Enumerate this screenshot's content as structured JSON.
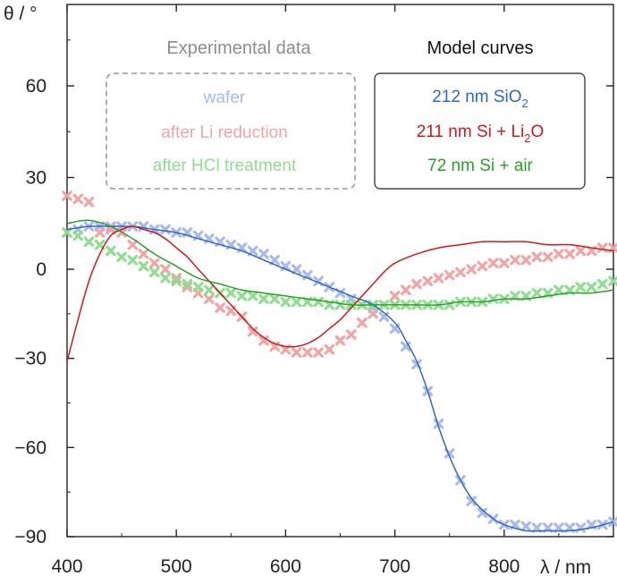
{
  "chart_data": {
    "type": "line",
    "title": "",
    "xlabel": "λ / nm",
    "ylabel": "θ / °",
    "xlim": [
      400,
      900
    ],
    "ylim": [
      -90,
      80
    ],
    "xticks": [
      400,
      500,
      600,
      700,
      800
    ],
    "yticks": [
      -90,
      -60,
      -30,
      0,
      30,
      60
    ],
    "grid": false,
    "legend_experimental": {
      "title": "Experimental data",
      "entries": [
        "wafer",
        "after Li reduction",
        "after HCl treatment"
      ]
    },
    "legend_model": {
      "title": "Model curves",
      "entries": [
        {
          "text": "212 nm SiO",
          "sub": "2",
          "tail": ""
        },
        {
          "text": "211 nm Si + Li",
          "sub": "2",
          "tail": "O"
        },
        {
          "text": "72 nm Si + air",
          "sub": "",
          "tail": ""
        }
      ]
    },
    "colors": {
      "wafer_data": "#a9b9ee",
      "li_data": "#f2a3a3",
      "hcl_data": "#8fdd8f",
      "wafer_model": "#2c6bbd",
      "li_model": "#cc1a1a",
      "hcl_model": "#2aa02a",
      "legend_exp_title": "#8c8c8c",
      "legend_model_title": "#111111"
    },
    "series": [
      {
        "name": "wafer",
        "kind": "data",
        "x": [
          400,
          410,
          420,
          430,
          440,
          450,
          460,
          470,
          480,
          490,
          500,
          510,
          520,
          530,
          540,
          550,
          560,
          570,
          580,
          590,
          600,
          610,
          620,
          630,
          640,
          650,
          660,
          670,
          680,
          690,
          700,
          710,
          720,
          730,
          740,
          750,
          760,
          770,
          780,
          790,
          800,
          810,
          820,
          830,
          840,
          850,
          860,
          870,
          880,
          890,
          900
        ],
        "y": [
          12,
          13,
          14,
          14,
          14,
          14,
          14,
          14,
          13,
          13,
          12,
          12,
          11,
          10,
          9,
          8,
          7,
          6,
          5,
          3,
          1,
          0,
          -2,
          -4,
          -6,
          -8,
          -10,
          -12,
          -13,
          -16,
          -20,
          -26,
          -32,
          -41,
          -52,
          -62,
          -71,
          -78,
          -82,
          -84,
          -86,
          -86,
          -86.5,
          -87,
          -87,
          -87,
          -87,
          -87,
          -86,
          -86,
          -85
        ]
      },
      {
        "name": "after Li reduction",
        "kind": "data",
        "x": [
          400,
          410,
          420,
          430,
          440,
          450,
          460,
          470,
          480,
          490,
          500,
          510,
          520,
          530,
          540,
          550,
          560,
          570,
          580,
          590,
          600,
          610,
          620,
          630,
          640,
          650,
          660,
          670,
          680,
          690,
          700,
          710,
          720,
          730,
          740,
          750,
          760,
          770,
          780,
          790,
          800,
          810,
          820,
          830,
          840,
          850,
          860,
          870,
          880,
          890,
          900
        ],
        "y": [
          24,
          23,
          22,
          12,
          13,
          12,
          8,
          5,
          2,
          0,
          -3,
          -6,
          -8,
          -10,
          -13,
          -14,
          -16,
          -21,
          -24,
          -26,
          -27,
          -28,
          -28,
          -28,
          -27,
          -24,
          -22,
          -18,
          -15,
          -12,
          -9,
          -7,
          -5,
          -4,
          -3,
          -2,
          -1,
          0,
          1,
          2,
          2,
          3,
          3,
          4,
          4,
          5,
          5,
          6,
          6,
          7,
          7
        ]
      },
      {
        "name": "after HCl treatment",
        "kind": "data",
        "x": [
          400,
          410,
          420,
          430,
          440,
          450,
          460,
          470,
          480,
          490,
          500,
          510,
          520,
          530,
          540,
          550,
          560,
          570,
          580,
          590,
          600,
          610,
          620,
          630,
          640,
          650,
          660,
          670,
          680,
          690,
          700,
          710,
          720,
          730,
          740,
          750,
          760,
          770,
          780,
          790,
          800,
          810,
          820,
          830,
          840,
          850,
          860,
          870,
          880,
          890,
          900
        ],
        "y": [
          12,
          11,
          9,
          8,
          6,
          4,
          3,
          1,
          -1,
          -3,
          -4,
          -5,
          -6,
          -7,
          -8,
          -8,
          -9,
          -9,
          -10,
          -10,
          -11,
          -11,
          -11,
          -11,
          -12,
          -12,
          -12,
          -12,
          -12,
          -12,
          -12,
          -12,
          -12,
          -12,
          -12,
          -12,
          -11,
          -11,
          -11,
          -10,
          -10,
          -9,
          -9,
          -8,
          -8,
          -7,
          -7,
          -6,
          -6,
          -5,
          -4
        ]
      },
      {
        "name": "212 nm SiO2",
        "kind": "model",
        "x": [
          400,
          420,
          440,
          460,
          480,
          500,
          520,
          540,
          560,
          580,
          600,
          620,
          640,
          660,
          680,
          700,
          710,
          720,
          730,
          740,
          750,
          760,
          770,
          780,
          790,
          800,
          820,
          840,
          860,
          880,
          900
        ],
        "y": [
          13,
          14,
          14,
          14,
          13,
          12,
          10,
          8,
          6,
          3,
          0,
          -3,
          -6,
          -9,
          -12,
          -18,
          -24,
          -31,
          -41,
          -53,
          -63,
          -71,
          -77,
          -81,
          -84,
          -86,
          -88,
          -88,
          -88,
          -87,
          -85
        ]
      },
      {
        "name": "211 nm Si + Li2O",
        "kind": "model",
        "x": [
          400,
          410,
          420,
          430,
          440,
          450,
          460,
          470,
          480,
          490,
          500,
          510,
          520,
          530,
          540,
          550,
          560,
          570,
          580,
          590,
          600,
          610,
          620,
          630,
          640,
          650,
          660,
          670,
          680,
          690,
          700,
          720,
          740,
          760,
          780,
          800,
          820,
          840,
          860,
          880,
          900
        ],
        "y": [
          -31,
          -17,
          -4,
          5,
          11,
          13,
          14,
          13,
          12,
          10,
          7,
          4,
          0,
          -4,
          -8,
          -12,
          -16,
          -20,
          -23,
          -25,
          -26,
          -26,
          -25,
          -23,
          -20,
          -17,
          -13,
          -9,
          -5,
          -1,
          2,
          5,
          7,
          8,
          9,
          9,
          9,
          8,
          8,
          7,
          6
        ]
      },
      {
        "name": "72 nm Si + air",
        "kind": "model",
        "x": [
          400,
          420,
          440,
          460,
          480,
          500,
          520,
          540,
          560,
          580,
          600,
          620,
          640,
          660,
          680,
          700,
          720,
          740,
          760,
          780,
          800,
          820,
          840,
          860,
          880,
          900
        ],
        "y": [
          15,
          16,
          14,
          10,
          5,
          1,
          -3,
          -5,
          -7,
          -8,
          -9,
          -10,
          -11,
          -12,
          -12,
          -12,
          -12,
          -12,
          -11,
          -11,
          -10,
          -10,
          -9,
          -8,
          -8,
          -7
        ]
      }
    ]
  }
}
